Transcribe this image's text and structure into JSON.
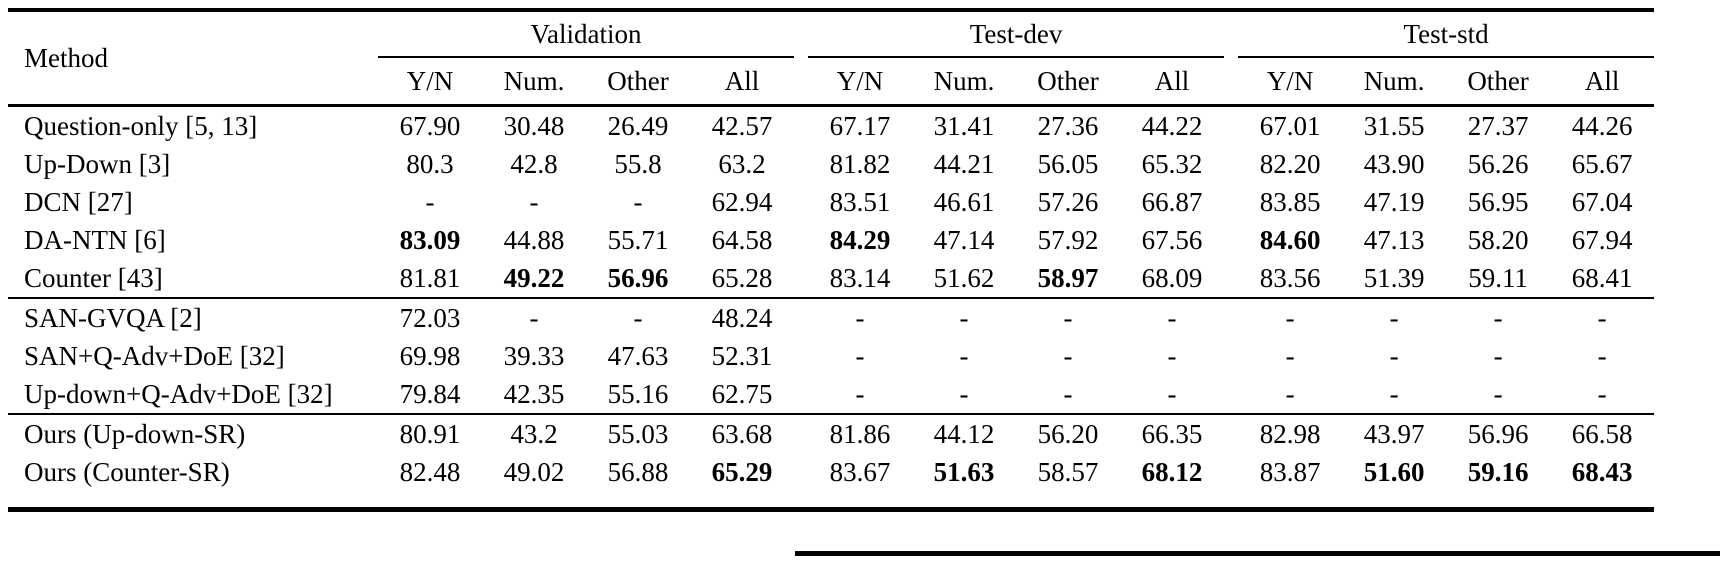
{
  "table": {
    "method_header": "Method",
    "col_groups": [
      {
        "label": "Validation",
        "sub": [
          "Y/N",
          "Num.",
          "Other",
          "All"
        ]
      },
      {
        "label": "Test-dev",
        "sub": [
          "Y/N",
          "Num.",
          "Other",
          "All"
        ]
      },
      {
        "label": "Test-std",
        "sub": [
          "Y/N",
          "Num.",
          "Other",
          "All"
        ]
      }
    ],
    "sections": [
      {
        "rows": [
          {
            "method": "Question-only [5, 13]",
            "values": [
              "67.90",
              "30.48",
              "26.49",
              "42.57",
              "67.17",
              "31.41",
              "27.36",
              "44.22",
              "67.01",
              "31.55",
              "27.37",
              "44.26"
            ],
            "bold": []
          },
          {
            "method": "Up-Down [3]",
            "values": [
              "80.3",
              "42.8",
              "55.8",
              "63.2",
              "81.82",
              "44.21",
              "56.05",
              "65.32",
              "82.20",
              "43.90",
              "56.26",
              "65.67"
            ],
            "bold": []
          },
          {
            "method": "DCN [27]",
            "values": [
              "-",
              "-",
              "-",
              "62.94",
              "83.51",
              "46.61",
              "57.26",
              "66.87",
              "83.85",
              "47.19",
              "56.95",
              "67.04"
            ],
            "bold": []
          },
          {
            "method": "DA-NTN [6]",
            "values": [
              "83.09",
              "44.88",
              "55.71",
              "64.58",
              "84.29",
              "47.14",
              "57.92",
              "67.56",
              "84.60",
              "47.13",
              "58.20",
              "67.94"
            ],
            "bold": [
              0,
              4,
              8
            ]
          },
          {
            "method": "Counter [43]",
            "values": [
              "81.81",
              "49.22",
              "56.96",
              "65.28",
              "83.14",
              "51.62",
              "58.97",
              "68.09",
              "83.56",
              "51.39",
              "59.11",
              "68.41"
            ],
            "bold": [
              1,
              2,
              6
            ]
          }
        ]
      },
      {
        "rows": [
          {
            "method": "SAN-GVQA [2]",
            "values": [
              "72.03",
              "-",
              "-",
              "48.24",
              "-",
              "-",
              "-",
              "-",
              "-",
              "-",
              "-",
              "-"
            ],
            "bold": []
          },
          {
            "method": "SAN+Q-Adv+DoE [32]",
            "values": [
              "69.98",
              "39.33",
              "47.63",
              "52.31",
              "-",
              "-",
              "-",
              "-",
              "-",
              "-",
              "-",
              "-"
            ],
            "bold": []
          },
          {
            "method": "Up-down+Q-Adv+DoE [32]",
            "values": [
              "79.84",
              "42.35",
              "55.16",
              "62.75",
              "-",
              "-",
              "-",
              "-",
              "-",
              "-",
              "-",
              "-"
            ],
            "bold": []
          }
        ]
      },
      {
        "rows": [
          {
            "method": "Ours (Up-down-SR)",
            "values": [
              "80.91",
              "43.2",
              "55.03",
              "63.68",
              "81.86",
              "44.12",
              "56.20",
              "66.35",
              "82.98",
              "43.97",
              "56.96",
              "66.58"
            ],
            "bold": []
          },
          {
            "method": "Ours (Counter-SR)",
            "values": [
              "82.48",
              "49.02",
              "56.88",
              "65.29",
              "83.67",
              "51.63",
              "58.57",
              "68.12",
              "83.87",
              "51.60",
              "59.16",
              "68.43"
            ],
            "bold": [
              3,
              5,
              7,
              9,
              10,
              11
            ]
          }
        ]
      }
    ]
  },
  "colors": {
    "text": "#000000",
    "background": "#ffffff",
    "rule": "#000000"
  }
}
